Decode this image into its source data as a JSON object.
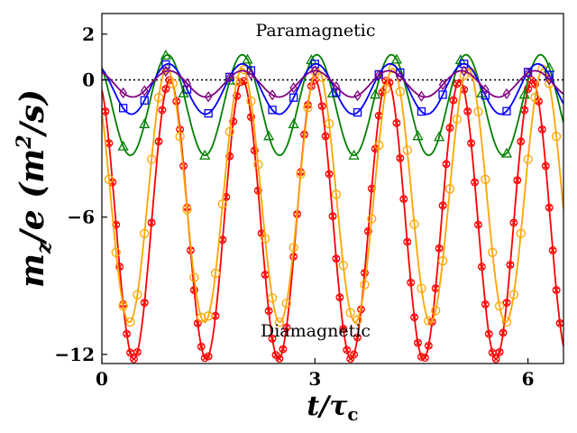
{
  "chart_data": {
    "type": "line",
    "xlabel": "t/τ_c",
    "ylabel": "m_z/e (m²/s)",
    "xlim": [
      0,
      6.5
    ],
    "ylim": [
      -12.4,
      2.9
    ],
    "xticks": [
      0,
      3,
      6
    ],
    "xtick_labels": [
      "0",
      "3",
      "6"
    ],
    "yticks": [
      2,
      0,
      -6,
      -12
    ],
    "ytick_labels": [
      "2",
      "0",
      "−6",
      "−12"
    ],
    "reference_line": {
      "y": 0,
      "style": "dotted",
      "color": "#000000"
    },
    "annotations": [
      {
        "text": "Paramagnetic",
        "x": 2.8,
        "y": 2.1
      },
      {
        "text": "Diamagnetic",
        "x": 2.8,
        "y": -11.1
      }
    ],
    "series": [
      {
        "name": "red",
        "color": "#ff0000",
        "marker": "x-circle",
        "period": 1.02,
        "min_value": -12.2,
        "max_value": 0.0,
        "phase_shift": 0,
        "marker_x": [
          0.05,
          0.1,
          0.15,
          0.2,
          0.25,
          0.3,
          0.35,
          0.4,
          0.45,
          0.5,
          0.6,
          0.7,
          0.8,
          0.85,
          0.9,
          0.95,
          1.05,
          1.1,
          1.15,
          1.2,
          1.25,
          1.3,
          1.35,
          1.4,
          1.45,
          1.5,
          1.6,
          1.7,
          1.75,
          1.8,
          1.85,
          1.9,
          1.95,
          2.0,
          2.1,
          2.15,
          2.2,
          2.25,
          2.3,
          2.35,
          2.4,
          2.45,
          2.5,
          2.55,
          2.6,
          2.7,
          2.75,
          2.8,
          2.85,
          2.9,
          2.95,
          3.0,
          3.1,
          3.15,
          3.2,
          3.25,
          3.3,
          3.35,
          3.4,
          3.45,
          3.5,
          3.55,
          3.6,
          3.65,
          3.7,
          3.75,
          3.8,
          3.85,
          3.9,
          3.95,
          4.0,
          4.05,
          4.15,
          4.2,
          4.25,
          4.3,
          4.35,
          4.4,
          4.45,
          4.5,
          4.55,
          4.6,
          4.65,
          4.7,
          4.75,
          4.8,
          4.85,
          4.9,
          4.95,
          5.0,
          5.1,
          5.15,
          5.2,
          5.25,
          5.3,
          5.35,
          5.4,
          5.45,
          5.5,
          5.55,
          5.6,
          5.65,
          5.7,
          5.75,
          5.8,
          5.85,
          5.9,
          5.95,
          6.0,
          6.05,
          6.1,
          6.15,
          6.2,
          6.25,
          6.3,
          6.35,
          6.4,
          6.45
        ]
      },
      {
        "name": "orange",
        "color": "#ffa500",
        "marker": "circle",
        "period": 1.06,
        "min_value": -10.6,
        "max_value": 0.5,
        "phase_shift": 0.08,
        "marker_x": [
          0.1,
          0.2,
          0.3,
          0.4,
          0.5,
          0.6,
          0.7,
          0.8,
          0.9,
          1.0,
          1.1,
          1.2,
          1.3,
          1.4,
          1.5,
          1.6,
          1.7,
          1.8,
          1.9,
          2.0,
          2.1,
          2.2,
          2.3,
          2.4,
          2.5,
          2.6,
          2.7,
          2.8,
          2.9,
          3.0,
          3.1,
          3.2,
          3.3,
          3.4,
          3.5,
          3.6,
          3.7,
          3.8,
          3.9,
          4.0,
          4.1,
          4.2,
          4.3,
          4.4,
          4.5,
          4.6,
          4.7,
          4.8,
          4.9,
          5.0,
          5.1,
          5.2,
          5.3,
          5.4,
          5.5,
          5.6,
          5.7,
          5.8,
          5.9,
          6.0,
          6.1,
          6.2,
          6.3,
          6.4
        ]
      },
      {
        "name": "green",
        "color": "#008000",
        "marker": "triangle",
        "period": 1.05,
        "min_value": -3.3,
        "max_value": 1.1,
        "phase_shift": 0.06,
        "marker_x": [
          0.3,
          0.6,
          0.9,
          1.15,
          1.45,
          1.8,
          2.05,
          2.35,
          2.7,
          2.95,
          3.25,
          3.55,
          3.85,
          4.15,
          4.45,
          4.75,
          5.05,
          5.35,
          5.7,
          5.95,
          6.3
        ]
      },
      {
        "name": "blue",
        "color": "#0000ff",
        "marker": "square",
        "period": 1.04,
        "min_value": -1.5,
        "max_value": 0.7,
        "phase_shift": 0.04,
        "marker_x": [
          0.3,
          0.6,
          0.9,
          1.2,
          1.5,
          1.8,
          2.1,
          2.4,
          2.7,
          3.0,
          3.3,
          3.6,
          3.9,
          4.2,
          4.5,
          4.8,
          5.1,
          5.4,
          5.7,
          6.0,
          6.3
        ]
      },
      {
        "name": "purple",
        "color": "#800080",
        "marker": "diamond",
        "period": 1.03,
        "min_value": -0.75,
        "max_value": 0.4,
        "phase_shift": 0.02,
        "marker_x": [
          0.3,
          0.6,
          0.9,
          1.2,
          1.5,
          1.8,
          2.1,
          2.4,
          2.7,
          3.0,
          3.3,
          3.6,
          3.9,
          4.2,
          4.5,
          4.8,
          5.1,
          5.4,
          5.7,
          6.0,
          6.3
        ]
      }
    ]
  }
}
